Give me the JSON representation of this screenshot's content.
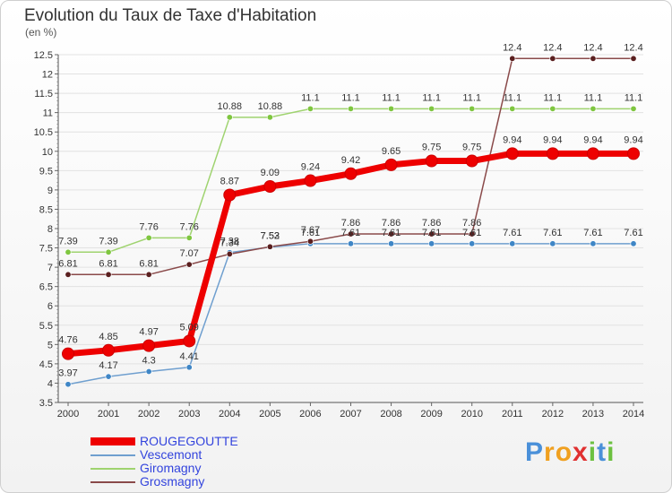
{
  "chart_data": {
    "type": "line",
    "title": "Evolution du Taux de Taxe d'Habitation",
    "ylabel": "(en %)",
    "xlabel": "",
    "ylim": [
      3.5,
      12.5
    ],
    "yticks": [
      "3.5",
      "4",
      "4.5",
      "5",
      "5.5",
      "6",
      "6.5",
      "7",
      "7.5",
      "8",
      "8.5",
      "9",
      "9.5",
      "10",
      "10.5",
      "11",
      "11.5",
      "12",
      "12.5"
    ],
    "categories": [
      "2000",
      "2001",
      "2002",
      "2003",
      "2004",
      "2005",
      "2006",
      "2007",
      "2008",
      "2009",
      "2010",
      "2011",
      "2012",
      "2013",
      "2014"
    ],
    "series": [
      {
        "name": "Vescemont",
        "color": "#6f9fcf",
        "markerColor": "#3f86c6",
        "values": [
          3.97,
          4.17,
          4.3,
          4.41,
          7.38,
          7.52,
          7.61,
          7.61,
          7.61,
          7.61,
          7.61,
          7.61,
          7.61,
          7.61,
          7.61
        ],
        "labels": [
          "3.97",
          "4.17",
          "4.3",
          "4.41",
          "7.38",
          "7.52",
          "7.61",
          "7.61",
          "7.61",
          "7.61",
          "7.61",
          "7.61",
          "7.61",
          "7.61",
          "7.61"
        ]
      },
      {
        "name": "Giromagny",
        "color": "#9fd36f",
        "markerColor": "#7fc640",
        "values": [
          7.39,
          7.39,
          7.76,
          7.76,
          10.88,
          10.88,
          11.1,
          11.1,
          11.1,
          11.1,
          11.1,
          11.1,
          11.1,
          11.1,
          11.1
        ],
        "labels": [
          "7.39",
          "7.39",
          "7.76",
          "7.76",
          "10.88",
          "10.88",
          "11.1",
          "11.1",
          "11.1",
          "11.1",
          "11.1",
          "11.1",
          "11.1",
          "11.1",
          "11.1"
        ]
      },
      {
        "name": "Grosmagny",
        "color": "#8a4a4a",
        "markerColor": "#5a1f1f",
        "values": [
          6.81,
          6.81,
          6.81,
          7.07,
          7.34,
          7.53,
          7.67,
          7.86,
          7.86,
          7.86,
          7.86,
          12.4,
          12.4,
          12.4,
          12.4
        ],
        "labels": [
          "6.81",
          "6.81",
          "6.81",
          "7.07",
          "7.34",
          "7.53",
          "7.67",
          "7.86",
          "7.86",
          "7.86",
          "7.86",
          "12.4",
          "12.4",
          "12.4",
          "12.4"
        ]
      },
      {
        "name": "ROUGEGOUTTE",
        "color": "#ee0000",
        "markerColor": "#ee0000",
        "values": [
          4.76,
          4.85,
          4.97,
          5.09,
          8.87,
          9.09,
          9.24,
          9.42,
          9.65,
          9.75,
          9.75,
          9.94,
          9.94,
          9.94,
          9.94
        ],
        "labels": [
          "4.76",
          "4.85",
          "4.97",
          "5.09",
          "8.87",
          "9.09",
          "9.24",
          "9.42",
          "9.65",
          "9.75",
          "9.75",
          "9.94",
          "9.94",
          "9.94",
          "9.94"
        ]
      }
    ],
    "legend": [
      "ROUGEGOUTTE",
      "Vescemont",
      "Giromagny",
      "Grosmagny"
    ],
    "legend_position": "bottom-left"
  },
  "brand": {
    "letters": [
      "P",
      "r",
      "o",
      "x",
      "i",
      "t",
      "i"
    ],
    "colors": [
      "#4a90d9",
      "#f0a020",
      "#f0a020",
      "#e03030",
      "#6cc040",
      "#4a90d9",
      "#6cc040"
    ]
  }
}
